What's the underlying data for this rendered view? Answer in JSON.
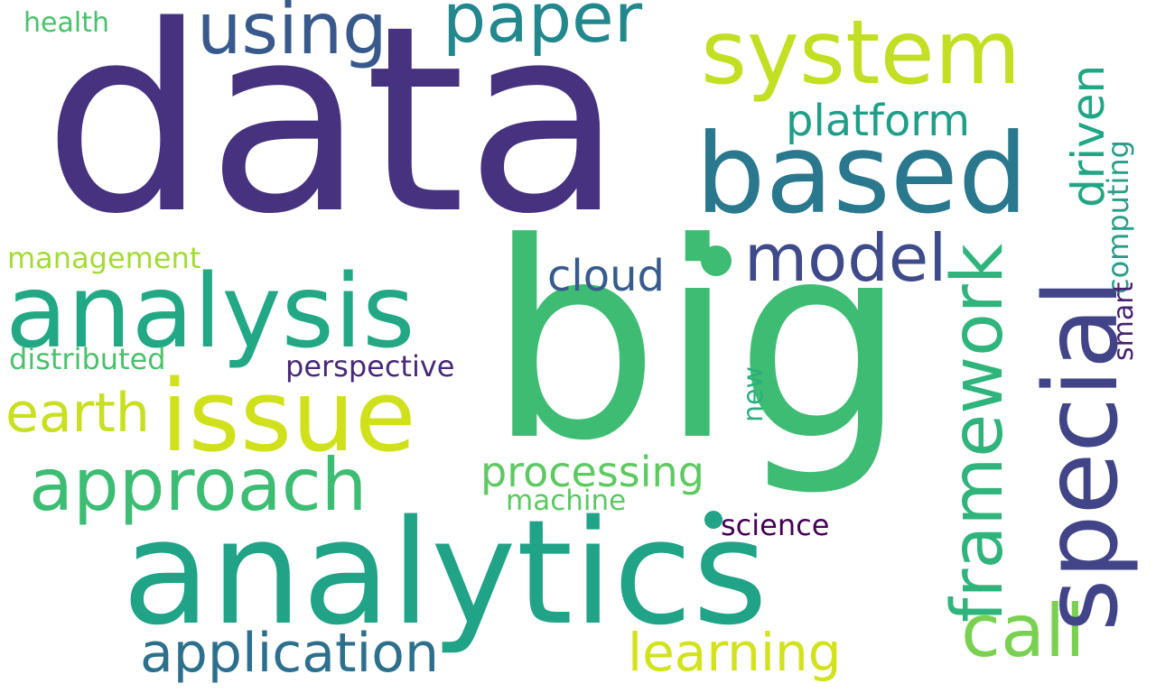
{
  "words": {
    "data": {
      "text": "data",
      "color": "#46327e"
    },
    "big": {
      "text": "big",
      "color": "#3fbc73"
    },
    "analytics": {
      "text": "analytics",
      "color": "#20a386"
    },
    "analysis": {
      "text": "analysis",
      "color": "#22a884"
    },
    "issue": {
      "text": "issue",
      "color": "#d0e11c"
    },
    "based": {
      "text": "based",
      "color": "#2a788e"
    },
    "system": {
      "text": "system",
      "color": "#c2df23"
    },
    "special": {
      "text": "special",
      "color": "#414487"
    },
    "approach": {
      "text": "approach",
      "color": "#3dbc74"
    },
    "framework": {
      "text": "framework",
      "color": "#2fb47c"
    },
    "using": {
      "text": "using",
      "color": "#38598c"
    },
    "paper": {
      "text": "paper",
      "color": "#23888e"
    },
    "model": {
      "text": "model",
      "color": "#3e4a89"
    },
    "call": {
      "text": "call",
      "color": "#7ad151"
    },
    "application": {
      "text": "application",
      "color": "#2d708e"
    },
    "learning": {
      "text": "learning",
      "color": "#d2e21b"
    },
    "earth": {
      "text": "earth",
      "color": "#c8e020"
    },
    "driven": {
      "text": "driven",
      "color": "#21a685"
    },
    "processing": {
      "text": "processing",
      "color": "#5ec962"
    },
    "platform": {
      "text": "platform",
      "color": "#1f9e89"
    },
    "cloud": {
      "text": "cloud",
      "color": "#375b8d"
    },
    "perspective": {
      "text": "perspective",
      "color": "#482878"
    },
    "distributed": {
      "text": "distributed",
      "color": "#4ac16d"
    },
    "management": {
      "text": "management",
      "color": "#a5db36"
    },
    "computing": {
      "text": "computing",
      "color": "#2a9c89"
    },
    "machine": {
      "text": "machine",
      "color": "#5cc863"
    },
    "science": {
      "text": "science",
      "color": "#440154"
    },
    "health": {
      "text": "health",
      "color": "#4ac16d"
    },
    "smart": {
      "text": "smart",
      "color": "#482173"
    },
    "new": {
      "text": "new",
      "color": "#29af7f"
    }
  },
  "dots": {
    "dot1": {
      "color": "#3fbc73"
    },
    "dot2": {
      "color": "#20a386"
    }
  }
}
